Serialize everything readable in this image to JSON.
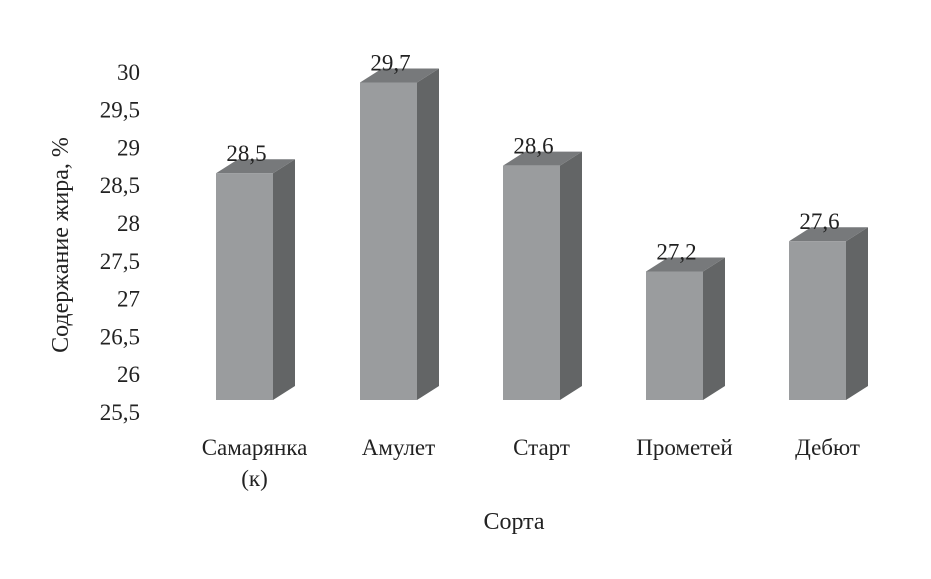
{
  "chart_data": {
    "type": "bar",
    "style": "3d-column",
    "categories": [
      "Самарянка (к)",
      "Амулет",
      "Старт",
      "Прометей",
      "Дебют"
    ],
    "category_lines": [
      [
        "Самарянка",
        "(к)"
      ],
      [
        "Амулет"
      ],
      [
        "Старт"
      ],
      [
        "Прометей"
      ],
      [
        "Дебют"
      ]
    ],
    "values": [
      28.5,
      29.7,
      28.6,
      27.2,
      27.6
    ],
    "data_labels": [
      "28,5",
      "29,7",
      "28,6",
      "27,2",
      "27,6"
    ],
    "xlabel": "Сорта",
    "ylabel": "Содержание жира, %",
    "ylim": [
      25.5,
      30
    ],
    "yticks": [
      "25,5",
      "26",
      "26,5",
      "27",
      "27,5",
      "28",
      "28,5",
      "29",
      "29,5",
      "30"
    ],
    "grid": false,
    "legend": "none",
    "colors": {
      "front": "#9a9c9e",
      "top": "#77797b",
      "side": "#636566"
    }
  }
}
